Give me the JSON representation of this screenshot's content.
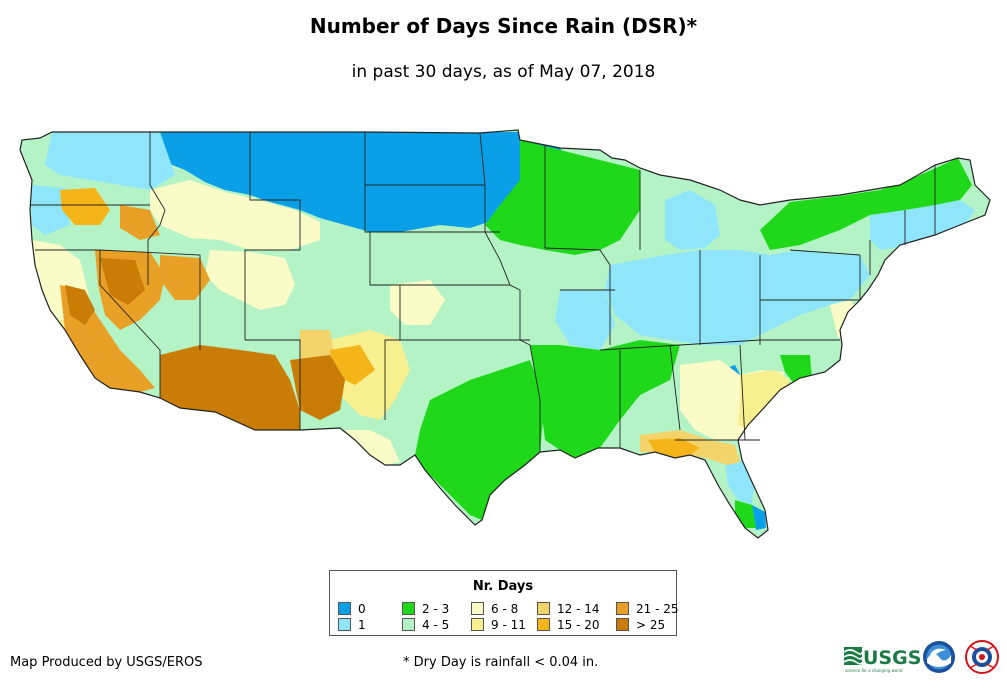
{
  "header": {
    "title": "Number of Days Since Rain (DSR)*",
    "subtitle": "in past 30 days, as of May 07, 2018"
  },
  "legend": {
    "title": "Nr. Days",
    "items": [
      {
        "label": "0",
        "color": "#0aa0e8"
      },
      {
        "label": "1",
        "color": "#8fe6fb"
      },
      {
        "label": "2 - 3",
        "color": "#1fd81a"
      },
      {
        "label": "4 - 5",
        "color": "#b4f3c5"
      },
      {
        "label": "6 - 8",
        "color": "#fbfbc8"
      },
      {
        "label": "9 - 11",
        "color": "#f8f08e"
      },
      {
        "label": "12 - 14",
        "color": "#f2d46a"
      },
      {
        "label": "15 - 20",
        "color": "#f5b418"
      },
      {
        "label": "21 - 25",
        "color": "#e8a126"
      },
      {
        "label": "> 25",
        "color": "#c97c06"
      }
    ]
  },
  "footer": {
    "credit": "Map Produced by USGS/EROS",
    "footnote": "* Dry Day is rainfall < 0.04 in.",
    "logos": [
      "usgs-logo",
      "noaa-logo",
      "nws-logo"
    ],
    "usgs_text": "USGS",
    "usgs_tagline": "science for a changing world"
  },
  "map": {
    "background_color": "#b4f3c5",
    "border_color": "#222222"
  }
}
